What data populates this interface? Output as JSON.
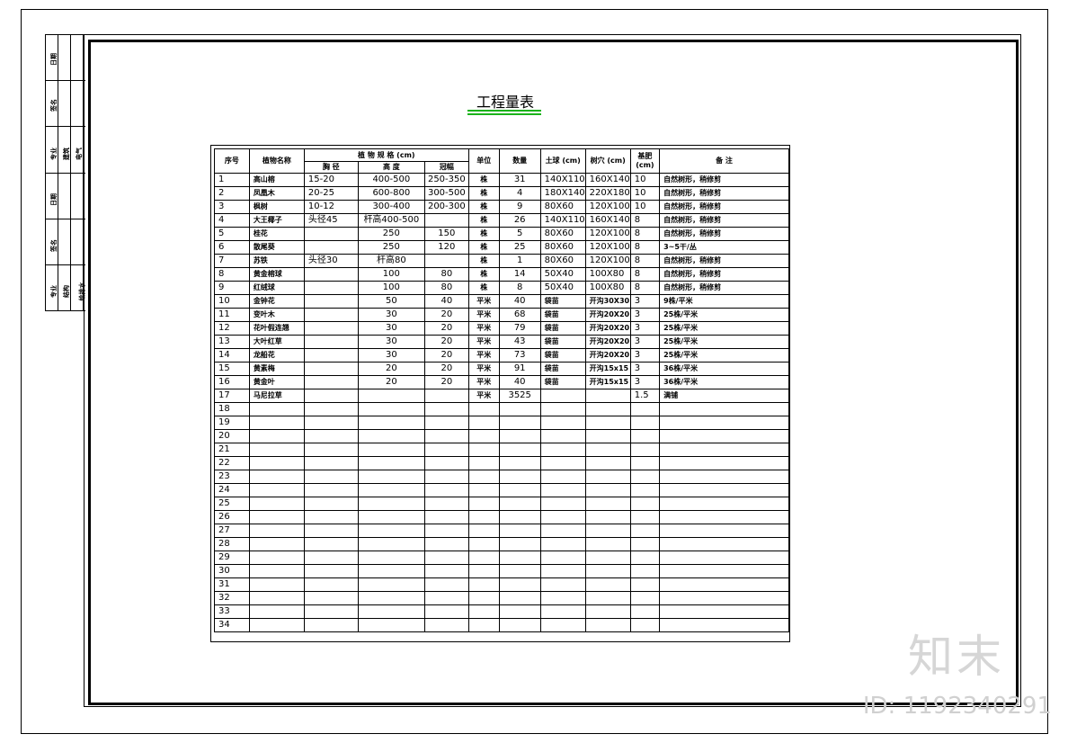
{
  "title_block": {
    "labels": [
      "日期",
      "签名",
      "专业",
      "建筑",
      "电气",
      "日期",
      "签名",
      "专业",
      "结构",
      "给排水"
    ]
  },
  "title": "工程量表",
  "table": {
    "headers": {
      "no": "序号",
      "name": "植物名称",
      "spec": "植 物 规 格 (cm)",
      "dbh": "胸 径",
      "height": "高 度",
      "crown": "冠幅",
      "unit": "单位",
      "qty": "数量",
      "ball": "土球 (cm)",
      "pit": "树穴 (cm)",
      "fert": "基肥 (cm)",
      "remark": "备 注"
    },
    "rows": [
      [
        "1",
        "高山榕",
        "15-20",
        "400-500",
        "250-350",
        "株",
        "31",
        "140X110",
        "160X140",
        "10",
        "自然树形，稍修剪"
      ],
      [
        "2",
        "凤凰木",
        "20-25",
        "600-800",
        "300-500",
        "株",
        "4",
        "180X140",
        "220X180",
        "10",
        "自然树形，稍修剪"
      ],
      [
        "3",
        "枫树",
        "10-12",
        "300-400",
        "200-300",
        "株",
        "9",
        "80X60",
        "120X100",
        "10",
        "自然树形，稍修剪"
      ],
      [
        "4",
        "大王椰子",
        "头径45",
        "杆高400-500",
        "",
        "株",
        "26",
        "140X110",
        "160X140",
        "8",
        "自然树形，稍修剪"
      ],
      [
        "5",
        "桂花",
        "",
        "250",
        "150",
        "株",
        "5",
        "80X60",
        "120X100",
        "8",
        "自然树形，稍修剪"
      ],
      [
        "6",
        "散尾葵",
        "",
        "250",
        "120",
        "株",
        "25",
        "80X60",
        "120X100",
        "8",
        "3~5干/丛"
      ],
      [
        "7",
        "苏铁",
        "头径30",
        "杆高80",
        "",
        "株",
        "1",
        "80X60",
        "120X100",
        "8",
        "自然树形，稍修剪"
      ],
      [
        "8",
        "黄金榕球",
        "",
        "100",
        "80",
        "株",
        "14",
        "50X40",
        "100X80",
        "8",
        "自然树形，稍修剪"
      ],
      [
        "9",
        "红绒球",
        "",
        "100",
        "80",
        "株",
        "8",
        "50X40",
        "100X80",
        "8",
        "自然树形，稍修剪"
      ],
      [
        "10",
        "金钟花",
        "",
        "50",
        "40",
        "平米",
        "40",
        "袋苗",
        "开沟30X30",
        "3",
        "9株/平米"
      ],
      [
        "11",
        "变叶木",
        "",
        "30",
        "20",
        "平米",
        "68",
        "袋苗",
        "开沟20X20",
        "3",
        "25株/平米"
      ],
      [
        "12",
        "花叶假连翘",
        "",
        "30",
        "20",
        "平米",
        "79",
        "袋苗",
        "开沟20X20",
        "3",
        "25株/平米"
      ],
      [
        "13",
        "大叶红草",
        "",
        "30",
        "20",
        "平米",
        "43",
        "袋苗",
        "开沟20X20",
        "3",
        "25株/平米"
      ],
      [
        "14",
        "龙船花",
        "",
        "30",
        "20",
        "平米",
        "73",
        "袋苗",
        "开沟20X20",
        "3",
        "25株/平米"
      ],
      [
        "15",
        "黄素梅",
        "",
        "20",
        "20",
        "平米",
        "91",
        "袋苗",
        "开沟15x15",
        "3",
        "36株/平米"
      ],
      [
        "16",
        "黄金叶",
        "",
        "20",
        "20",
        "平米",
        "40",
        "袋苗",
        "开沟15x15",
        "3",
        "36株/平米"
      ],
      [
        "17",
        "马尼拉草",
        "",
        "",
        "",
        "平米",
        "3525",
        "",
        "",
        "1.5",
        "满铺"
      ],
      [
        "18",
        "",
        "",
        "",
        "",
        "",
        "",
        "",
        "",
        "",
        ""
      ],
      [
        "19",
        "",
        "",
        "",
        "",
        "",
        "",
        "",
        "",
        "",
        ""
      ],
      [
        "20",
        "",
        "",
        "",
        "",
        "",
        "",
        "",
        "",
        "",
        ""
      ],
      [
        "21",
        "",
        "",
        "",
        "",
        "",
        "",
        "",
        "",
        "",
        ""
      ],
      [
        "22",
        "",
        "",
        "",
        "",
        "",
        "",
        "",
        "",
        "",
        ""
      ],
      [
        "23",
        "",
        "",
        "",
        "",
        "",
        "",
        "",
        "",
        "",
        ""
      ],
      [
        "24",
        "",
        "",
        "",
        "",
        "",
        "",
        "",
        "",
        "",
        ""
      ],
      [
        "25",
        "",
        "",
        "",
        "",
        "",
        "",
        "",
        "",
        "",
        ""
      ],
      [
        "26",
        "",
        "",
        "",
        "",
        "",
        "",
        "",
        "",
        "",
        ""
      ],
      [
        "27",
        "",
        "",
        "",
        "",
        "",
        "",
        "",
        "",
        "",
        ""
      ],
      [
        "28",
        "",
        "",
        "",
        "",
        "",
        "",
        "",
        "",
        "",
        ""
      ],
      [
        "29",
        "",
        "",
        "",
        "",
        "",
        "",
        "",
        "",
        "",
        ""
      ],
      [
        "30",
        "",
        "",
        "",
        "",
        "",
        "",
        "",
        "",
        "",
        ""
      ],
      [
        "31",
        "",
        "",
        "",
        "",
        "",
        "",
        "",
        "",
        "",
        ""
      ],
      [
        "32",
        "",
        "",
        "",
        "",
        "",
        "",
        "",
        "",
        "",
        ""
      ],
      [
        "33",
        "",
        "",
        "",
        "",
        "",
        "",
        "",
        "",
        "",
        ""
      ],
      [
        "34",
        "",
        "",
        "",
        "",
        "",
        "",
        "",
        "",
        "",
        ""
      ]
    ]
  },
  "watermark": {
    "logo": "知末",
    "id": "ID: 1192340291"
  },
  "colors": {
    "title_underline": "#1bb31b"
  }
}
